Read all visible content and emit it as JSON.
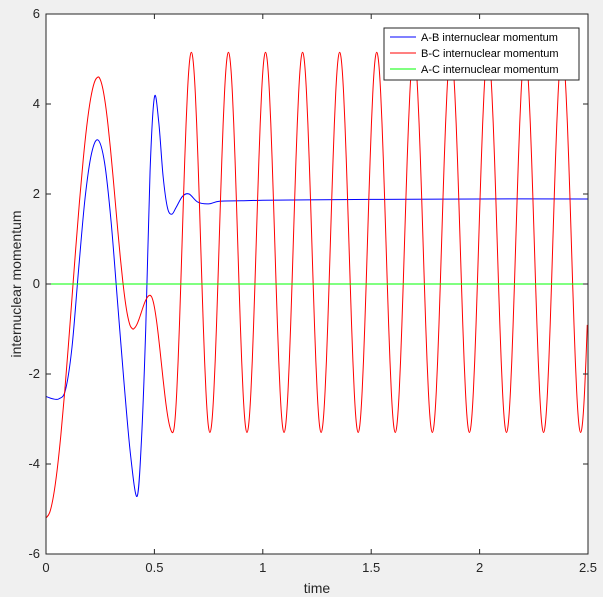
{
  "chart_data": {
    "type": "line",
    "title": "",
    "xlabel": "time",
    "ylabel": "internuclear momentum",
    "xlim": [
      0,
      2.5
    ],
    "ylim": [
      -6,
      6
    ],
    "x_ticks": [
      0,
      0.5,
      1,
      1.5,
      2,
      2.5
    ],
    "x_tick_labels": [
      "0",
      "0.5",
      "1",
      "1.5",
      "2",
      "2.5"
    ],
    "y_ticks": [
      -6,
      -4,
      -2,
      0,
      2,
      4,
      6
    ],
    "y_tick_labels": [
      "-6",
      "-4",
      "-2",
      "0",
      "2",
      "4",
      "6"
    ],
    "grid": false,
    "legend_position": "top-right",
    "colors": {
      "plot_background": "#ffffff",
      "figure_background": "#f0f0f0",
      "axes": "#262626"
    },
    "series": [
      {
        "name": "A-B internuclear momentum",
        "color": "#0000ff",
        "x": [
          0,
          0.03,
          0.06,
          0.09,
          0.12,
          0.15,
          0.18,
          0.21,
          0.24,
          0.27,
          0.3,
          0.33,
          0.36,
          0.39,
          0.42,
          0.44,
          0.46,
          0.48,
          0.5,
          0.52,
          0.54,
          0.56,
          0.58,
          0.6,
          0.63,
          0.66,
          0.7,
          0.75,
          0.8,
          0.9,
          1.0,
          1.2,
          1.5,
          2.0,
          2.5
        ],
        "values": [
          -2.5,
          -2.55,
          -2.55,
          -2.35,
          -1.4,
          0.3,
          1.9,
          2.9,
          3.2,
          2.7,
          1.4,
          -0.4,
          -2.2,
          -3.8,
          -4.72,
          -3.5,
          -1.0,
          2.5,
          4.15,
          3.6,
          2.4,
          1.7,
          1.55,
          1.7,
          1.95,
          2.0,
          1.82,
          1.78,
          1.84,
          1.85,
          1.86,
          1.87,
          1.88,
          1.89,
          1.89
        ]
      },
      {
        "name": "B-C internuclear momentum",
        "color": "#ff0000",
        "model": {
          "type": "damped_oscillation",
          "start": [
            0,
            -5.2
          ],
          "events": [
            {
              "t": 0.24,
              "v": 4.6
            },
            {
              "t": 0.4,
              "v": -1.0
            },
            {
              "t": 0.48,
              "v": -0.25
            },
            {
              "t": 0.585,
              "v": -3.3
            }
          ],
          "period": 0.171,
          "max": 5.15,
          "min": -3.3
        }
      },
      {
        "name": "A-C internuclear momentum",
        "color": "#00ff00",
        "x": [
          0,
          2.5
        ],
        "values": [
          0,
          0
        ]
      }
    ]
  }
}
